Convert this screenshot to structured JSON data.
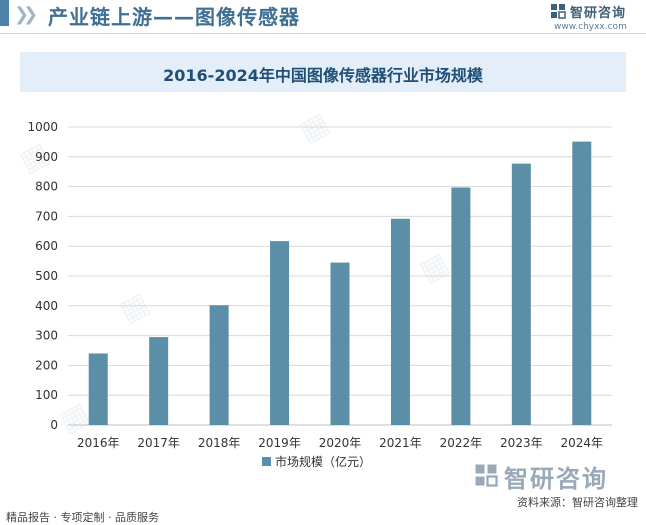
{
  "header": {
    "title": "产业链上游——图像传感器"
  },
  "logo": {
    "name": "智研咨询",
    "url": "www.chyxx.com"
  },
  "footer": {
    "left": "精品报告 · 专项定制 · 品质服务",
    "source": "资料来源：智研咨询整理"
  },
  "chart_data": {
    "type": "bar",
    "title": "2016-2024年中国图像传感器行业市场规模",
    "categories": [
      "2016年",
      "2017年",
      "2018年",
      "2019年",
      "2020年",
      "2021年",
      "2022年",
      "2023年",
      "2024年"
    ],
    "series": [
      {
        "name": "市场规模（亿元）",
        "values": [
          240,
          295,
          402,
          617,
          545,
          692,
          797,
          877,
          951
        ]
      }
    ],
    "ylim": [
      0,
      1000
    ],
    "yticks": [
      0,
      100,
      200,
      300,
      400,
      500,
      600,
      700,
      800,
      900,
      1000
    ],
    "grid": true,
    "legend_position": "bottom-center",
    "bar_color": "#5b8fa8",
    "grid_color": "#d9d9d9"
  }
}
